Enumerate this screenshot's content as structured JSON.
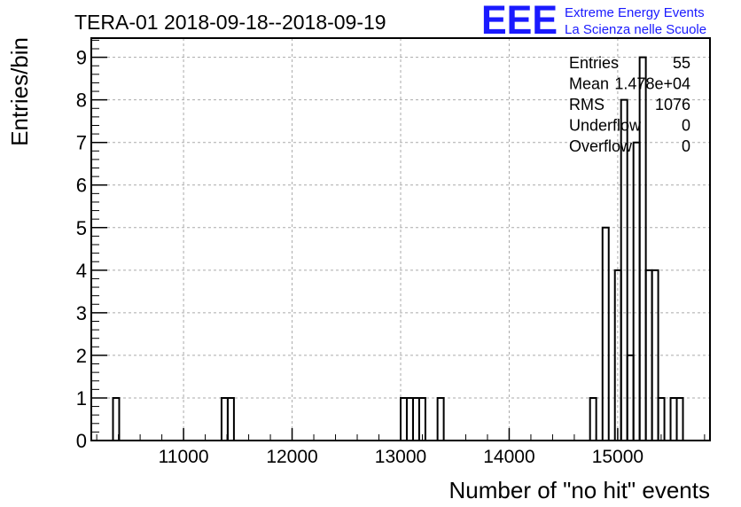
{
  "chart_data": {
    "type": "histogram",
    "title": "TERA-01 2018-09-18--2018-09-19",
    "xlabel": "Number of \"no hit\" events",
    "ylabel": "Entries/bin",
    "xlim": [
      10150,
      15850
    ],
    "ylim": [
      0,
      9.45
    ],
    "x_ticks": [
      11000,
      12000,
      13000,
      14000,
      15000
    ],
    "y_ticks": [
      0,
      1,
      2,
      3,
      4,
      5,
      6,
      7,
      8,
      9
    ],
    "grid": true,
    "bin_width": 57,
    "bins": [
      {
        "x": 10350,
        "count": 1
      },
      {
        "x": 11350,
        "count": 1
      },
      {
        "x": 11407,
        "count": 1
      },
      {
        "x": 13000,
        "count": 1
      },
      {
        "x": 13057,
        "count": 1
      },
      {
        "x": 13114,
        "count": 1
      },
      {
        "x": 13171,
        "count": 1
      },
      {
        "x": 13340,
        "count": 1
      },
      {
        "x": 14745,
        "count": 1
      },
      {
        "x": 14860,
        "count": 5
      },
      {
        "x": 14917,
        "count": 0
      },
      {
        "x": 14974,
        "count": 4
      },
      {
        "x": 15031,
        "count": 8
      },
      {
        "x": 15088,
        "count": 2
      },
      {
        "x": 15145,
        "count": 7
      },
      {
        "x": 15202,
        "count": 9
      },
      {
        "x": 15259,
        "count": 4
      },
      {
        "x": 15316,
        "count": 4
      },
      {
        "x": 15373,
        "count": 1
      },
      {
        "x": 15487,
        "count": 1
      },
      {
        "x": 15544,
        "count": 1
      }
    ],
    "stats": [
      {
        "label": "Entries",
        "value": "55"
      },
      {
        "label": "Mean",
        "value": "1.478e+04"
      },
      {
        "label": "RMS",
        "value": "1076"
      },
      {
        "label": "Underflow",
        "value": "0"
      },
      {
        "label": "Overflow",
        "value": "0"
      }
    ]
  },
  "logo": {
    "text": "EEE",
    "line1": "Extreme Energy Events",
    "line2": "La Scienza nelle Scuole",
    "color": "#1a1aff"
  },
  "colors": {
    "axes": "#000000",
    "grid": "#aaaaaa",
    "histogram": "#000000"
  }
}
